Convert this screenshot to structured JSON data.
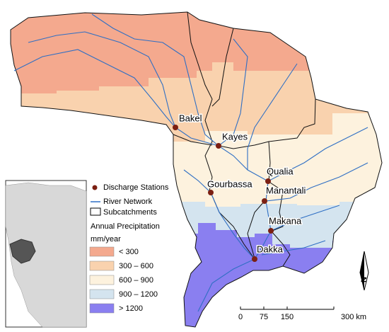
{
  "map": {
    "stations": [
      {
        "label": "Bakel"
      },
      {
        "label": "Kayes"
      },
      {
        "label": "Qualia"
      },
      {
        "label": "Gourbassa"
      },
      {
        "label": "Manantali"
      },
      {
        "label": "Makana"
      },
      {
        "label": "Dakka"
      }
    ],
    "legend": {
      "station": "Discharge Stations",
      "station_color": "#7b1f12",
      "river": "River Network",
      "subcatchment": "Subcatchments",
      "title": "Annual Precipitation",
      "unit": "mm/year",
      "classes": [
        {
          "label": "< 300",
          "color": "#f4a98e"
        },
        {
          "label": "300 – 600",
          "color": "#f9d2ae"
        },
        {
          "label": "600 – 900",
          "color": "#fdf2de"
        },
        {
          "label": "900 – 1200",
          "color": "#d4e4ef"
        },
        {
          "label": "> 1200",
          "color": "#8a7ff0"
        }
      ]
    },
    "scale": {
      "ticks": [
        "0",
        "75",
        "150",
        "300 km"
      ]
    },
    "north": "N"
  }
}
